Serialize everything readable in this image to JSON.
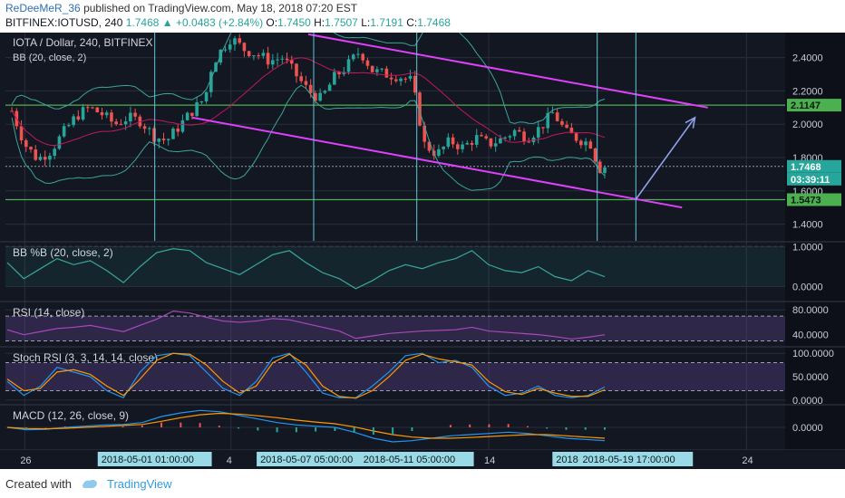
{
  "header": {
    "author": "ReDeeMeR_36",
    "published_text": "published on TradingView.com, May 18, 2018 07:20 EST",
    "symbol_line": "BITFINEX:IOTUSD, 240",
    "last": "1.7468",
    "change": "+0.0483 (+2.84%)",
    "open_label": "O:",
    "open": "1.7450",
    "high_label": "H:",
    "high": "1.7507",
    "low_label": "L:",
    "low": "1.7191",
    "close_label": "C:",
    "close": "1.7468"
  },
  "footer": {
    "created_with": "Created with",
    "brand": "TradingView"
  },
  "colors": {
    "background": "#131722",
    "up": "#26a69a",
    "down": "#ef5350",
    "channel": "#e040fb",
    "hline": "#4caf50",
    "vline": "#5fc8d8",
    "arrow": "#8fa0e8"
  },
  "chart_data": [
    {
      "type": "candlestick",
      "title": "IOTA / Dollar, 240, BITFINEX",
      "overlay_label": "BB (20, close, 2)",
      "ylim": [
        1.3,
        2.55
      ],
      "y_ticks": [
        1.4,
        1.6,
        1.8,
        2.0,
        2.2,
        2.4
      ],
      "y_tick_labels": [
        "1.4000",
        "1.6000",
        "1.8000",
        "2.0000",
        "2.2000",
        "2.4000"
      ],
      "horizontal_levels": [
        2.1147,
        1.5473
      ],
      "price_tags": [
        "2.1147",
        "1.7468",
        "03:39:11",
        "1.5473"
      ],
      "last_price": 1.7468,
      "countdown": "03:39:11",
      "channel_upper": {
        "from": [
          "2018-05-07 00:00",
          2.54
        ],
        "to": [
          "2018-05-22 12:00",
          2.1
        ]
      },
      "channel_lower": {
        "from": [
          "2018-05-02 12:00",
          2.04
        ],
        "to": [
          "2018-05-21 12:00",
          1.5
        ]
      },
      "projection_arrow": {
        "from": [
          "2018-05-19 17:00",
          1.55
        ],
        "to": [
          "2018-05-22 00:00",
          2.04
        ]
      },
      "close_path": [
        [
          "2018-04-25 12:00",
          2.08
        ],
        [
          "2018-04-26 00:00",
          1.88
        ],
        [
          "2018-04-26 12:00",
          1.79
        ],
        [
          "2018-04-27 00:00",
          1.84
        ],
        [
          "2018-04-27 12:00",
          1.95
        ],
        [
          "2018-04-28 00:00",
          2.05
        ],
        [
          "2018-04-28 12:00",
          2.1
        ],
        [
          "2018-04-29 00:00",
          2.06
        ],
        [
          "2018-04-29 12:00",
          2.0
        ],
        [
          "2018-04-30 00:00",
          2.04
        ],
        [
          "2018-04-30 12:00",
          2.02
        ],
        [
          "2018-05-01 00:00",
          1.93
        ],
        [
          "2018-05-01 12:00",
          1.9
        ],
        [
          "2018-05-02 00:00",
          1.99
        ],
        [
          "2018-05-02 12:00",
          2.08
        ],
        [
          "2018-05-03 00:00",
          2.16
        ],
        [
          "2018-05-03 06:00",
          2.35
        ],
        [
          "2018-05-03 12:00",
          2.42
        ],
        [
          "2018-05-04 00:00",
          2.52
        ],
        [
          "2018-05-04 12:00",
          2.45
        ],
        [
          "2018-05-05 00:00",
          2.42
        ],
        [
          "2018-05-05 12:00",
          2.38
        ],
        [
          "2018-05-06 00:00",
          2.4
        ],
        [
          "2018-05-06 12:00",
          2.3
        ],
        [
          "2018-05-07 00:00",
          2.2
        ],
        [
          "2018-05-07 12:00",
          2.15
        ],
        [
          "2018-05-08 00:00",
          2.28
        ],
        [
          "2018-05-08 12:00",
          2.35
        ],
        [
          "2018-05-09 00:00",
          2.44
        ],
        [
          "2018-05-09 12:00",
          2.32
        ],
        [
          "2018-05-10 00:00",
          2.3
        ],
        [
          "2018-05-10 12:00",
          2.29
        ],
        [
          "2018-05-11 00:00",
          2.26
        ],
        [
          "2018-05-11 06:00",
          2.08
        ],
        [
          "2018-05-11 12:00",
          1.88
        ],
        [
          "2018-05-12 00:00",
          1.82
        ],
        [
          "2018-05-12 12:00",
          1.9
        ],
        [
          "2018-05-13 00:00",
          1.86
        ],
        [
          "2018-05-13 12:00",
          1.92
        ],
        [
          "2018-05-14 00:00",
          1.88
        ],
        [
          "2018-05-14 12:00",
          1.91
        ],
        [
          "2018-05-15 00:00",
          1.96
        ],
        [
          "2018-05-15 12:00",
          1.92
        ],
        [
          "2018-05-16 00:00",
          1.98
        ],
        [
          "2018-05-16 12:00",
          2.07
        ],
        [
          "2018-05-17 00:00",
          1.95
        ],
        [
          "2018-05-17 12:00",
          1.91
        ],
        [
          "2018-05-18 00:00",
          1.88
        ],
        [
          "2018-05-18 06:00",
          1.73
        ],
        [
          "2018-05-18 12:00",
          1.7468
        ]
      ]
    },
    {
      "type": "line",
      "title": "BB %B (20, close, 2)",
      "ylim": [
        -0.35,
        1.1
      ],
      "y_ticks": [
        0.0,
        1.0
      ],
      "y_tick_labels": [
        "0.0000",
        "1.0000"
      ],
      "reference_lines": [
        0.0,
        1.0
      ],
      "series": [
        {
          "values": [
            0.6,
            0.2,
            0.45,
            0.7,
            0.55,
            0.65,
            0.4,
            0.1,
            0.5,
            0.85,
            0.95,
            0.9,
            0.6,
            0.45,
            0.3,
            0.55,
            0.8,
            0.9,
            0.6,
            0.35,
            0.2,
            -0.05,
            0.15,
            0.4,
            0.55,
            0.45,
            0.6,
            0.7,
            0.9,
            0.55,
            0.4,
            0.35,
            0.5,
            0.25,
            0.15,
            0.4,
            0.25
          ]
        }
      ]
    },
    {
      "type": "line",
      "title": "RSI (14, close)",
      "ylim": [
        22,
        92
      ],
      "y_ticks": [
        40,
        80
      ],
      "y_tick_labels": [
        "40.0000",
        "80.0000"
      ],
      "reference_lines": [
        30,
        70
      ],
      "series": [
        {
          "values": [
            48,
            40,
            45,
            50,
            52,
            55,
            50,
            45,
            55,
            65,
            78,
            75,
            68,
            62,
            60,
            62,
            66,
            64,
            58,
            52,
            46,
            34,
            38,
            42,
            44,
            46,
            47,
            48,
            52,
            46,
            44,
            42,
            40,
            37,
            33,
            36,
            40
          ]
        }
      ]
    },
    {
      "type": "line",
      "title": "Stoch RSI (3, 3, 14, 14, close)",
      "ylim": [
        -8,
        112
      ],
      "y_ticks": [
        0,
        50,
        100
      ],
      "y_tick_labels": [
        "0.0000",
        "50.0000",
        "100.0000"
      ],
      "reference_lines": [
        20,
        80
      ],
      "series": [
        {
          "values": [
            40,
            10,
            30,
            70,
            60,
            50,
            20,
            5,
            60,
            95,
            100,
            95,
            60,
            25,
            10,
            40,
            90,
            100,
            60,
            15,
            5,
            5,
            30,
            60,
            95,
            100,
            80,
            85,
            70,
            30,
            10,
            15,
            30,
            10,
            5,
            10,
            28
          ]
        },
        {
          "values": [
            45,
            20,
            25,
            60,
            65,
            55,
            30,
            10,
            45,
            85,
            100,
            98,
            75,
            40,
            15,
            30,
            80,
            98,
            75,
            30,
            8,
            4,
            20,
            50,
            85,
            98,
            88,
            82,
            75,
            40,
            18,
            12,
            25,
            15,
            8,
            8,
            22
          ]
        }
      ]
    },
    {
      "type": "line",
      "title": "MACD (12, 26, close, 9)",
      "ylim": [
        -0.09,
        0.09
      ],
      "y_ticks": [
        0.0
      ],
      "y_tick_labels": [
        "0.0000"
      ],
      "series": [
        {
          "values": [
            0.0,
            -0.01,
            -0.008,
            0.0,
            0.005,
            0.01,
            0.012,
            0.02,
            0.045,
            0.06,
            0.07,
            0.065,
            0.05,
            0.035,
            0.02,
            0.01,
            0.005,
            0.0,
            -0.02,
            -0.045,
            -0.06,
            -0.055,
            -0.045,
            -0.035,
            -0.03,
            -0.025,
            -0.02,
            -0.025,
            -0.035,
            -0.045,
            -0.05,
            -0.055
          ]
        },
        {
          "values": [
            0.0,
            -0.005,
            -0.006,
            -0.004,
            0.0,
            0.004,
            0.008,
            0.012,
            0.025,
            0.04,
            0.052,
            0.058,
            0.055,
            0.048,
            0.04,
            0.03,
            0.022,
            0.015,
            0.002,
            -0.015,
            -0.03,
            -0.04,
            -0.045,
            -0.045,
            -0.042,
            -0.038,
            -0.034,
            -0.03,
            -0.03,
            -0.035,
            -0.04,
            -0.045
          ]
        }
      ]
    }
  ],
  "x_axis": {
    "tick_labels": [
      "26",
      "4",
      "14",
      "24"
    ],
    "tick_times": [
      "2018-04-26 00:00",
      "2018-05-04 00:00",
      "2018-05-14 00:00",
      "2018-05-24 00:00"
    ],
    "highlighted_labels": [
      "2018-05-01 01:00:00",
      "2018-05-07 05:00:00",
      "2018-05-11 05:00:00",
      "2018-05",
      "2018-05-19 17:00:00"
    ],
    "highlighted_times": [
      "2018-05-01 01:00",
      "2018-05-07 05:00",
      "2018-05-11 05:00",
      "2018-05-18 05:00",
      "2018-05-19 17:00"
    ],
    "range": [
      "2018-04-25 06:00",
      "2018-05-25 12:00"
    ]
  }
}
